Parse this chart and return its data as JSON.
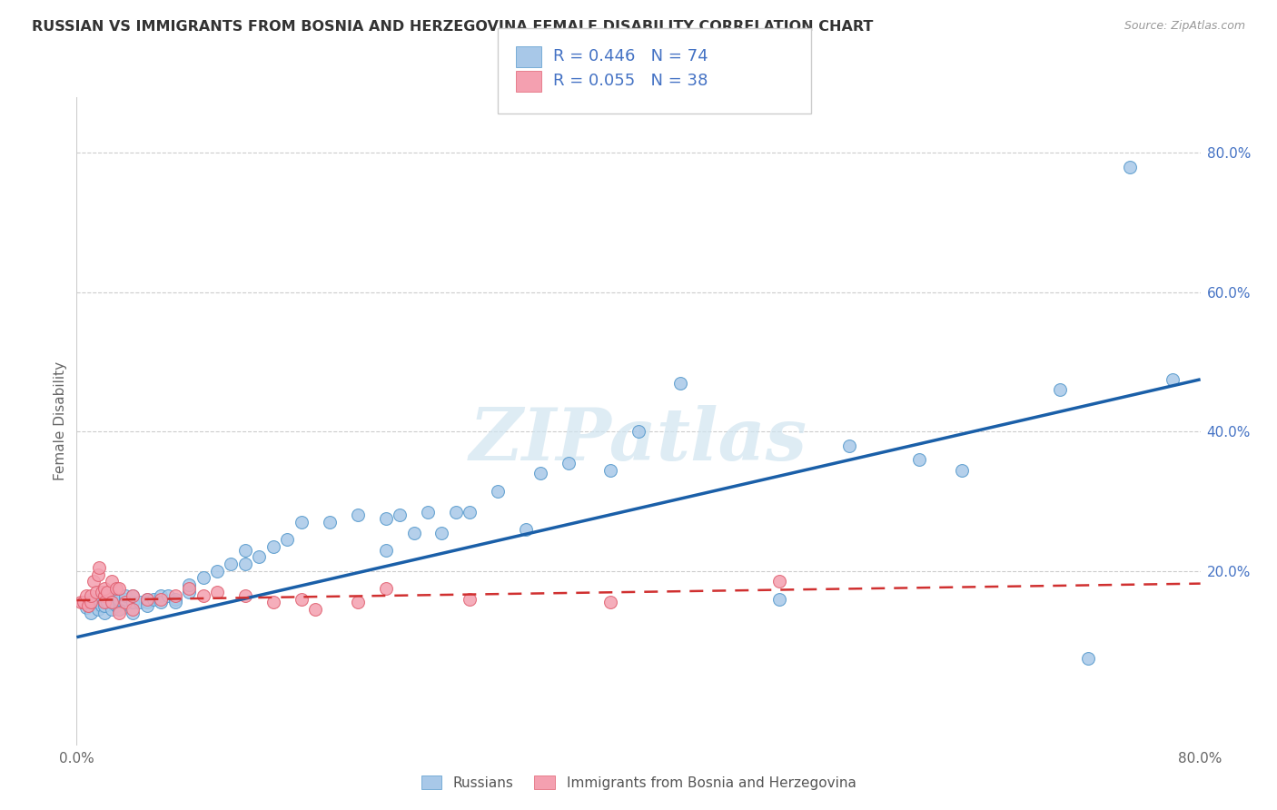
{
  "title": "RUSSIAN VS IMMIGRANTS FROM BOSNIA AND HERZEGOVINA FEMALE DISABILITY CORRELATION CHART",
  "source": "Source: ZipAtlas.com",
  "ylabel": "Female Disability",
  "watermark": "ZIPatlas",
  "xlim": [
    0.0,
    0.8
  ],
  "ylim": [
    -0.05,
    0.88
  ],
  "xticks": [
    0.0,
    0.1,
    0.2,
    0.3,
    0.4,
    0.5,
    0.6,
    0.7,
    0.8
  ],
  "xticklabels": [
    "0.0%",
    "",
    "",
    "",
    "",
    "",
    "",
    "",
    "80.0%"
  ],
  "ytick_positions": [
    0.0,
    0.2,
    0.4,
    0.6,
    0.8
  ],
  "yticklabels": [
    "",
    "20.0%",
    "40.0%",
    "60.0%",
    "80.0%"
  ],
  "russian_color": "#a8c8e8",
  "russian_edge_color": "#5599cc",
  "bosnia_color": "#f4a0b0",
  "bosnia_edge_color": "#e06070",
  "russian_line_color": "#1a5fa8",
  "bosnia_line_color": "#d03030",
  "grid_color": "#cccccc",
  "russian_scatter_x": [
    0.005,
    0.007,
    0.008,
    0.01,
    0.01,
    0.012,
    0.015,
    0.015,
    0.015,
    0.018,
    0.02,
    0.02,
    0.02,
    0.022,
    0.025,
    0.025,
    0.025,
    0.025,
    0.028,
    0.03,
    0.03,
    0.03,
    0.035,
    0.035,
    0.04,
    0.04,
    0.04,
    0.04,
    0.045,
    0.05,
    0.05,
    0.05,
    0.055,
    0.06,
    0.06,
    0.065,
    0.07,
    0.07,
    0.08,
    0.08,
    0.09,
    0.1,
    0.11,
    0.12,
    0.12,
    0.13,
    0.14,
    0.15,
    0.16,
    0.18,
    0.2,
    0.22,
    0.22,
    0.23,
    0.24,
    0.25,
    0.26,
    0.27,
    0.28,
    0.3,
    0.32,
    0.33,
    0.35,
    0.38,
    0.4,
    0.43,
    0.5,
    0.55,
    0.6,
    0.63,
    0.7,
    0.72,
    0.75,
    0.78
  ],
  "russian_scatter_y": [
    0.155,
    0.148,
    0.15,
    0.14,
    0.16,
    0.155,
    0.145,
    0.155,
    0.16,
    0.15,
    0.155,
    0.14,
    0.15,
    0.155,
    0.145,
    0.155,
    0.16,
    0.165,
    0.15,
    0.155,
    0.145,
    0.16,
    0.16,
    0.165,
    0.155,
    0.14,
    0.155,
    0.165,
    0.155,
    0.16,
    0.155,
    0.15,
    0.16,
    0.165,
    0.155,
    0.165,
    0.16,
    0.155,
    0.17,
    0.18,
    0.19,
    0.2,
    0.21,
    0.21,
    0.23,
    0.22,
    0.235,
    0.245,
    0.27,
    0.27,
    0.28,
    0.275,
    0.23,
    0.28,
    0.255,
    0.285,
    0.255,
    0.285,
    0.285,
    0.315,
    0.26,
    0.34,
    0.355,
    0.345,
    0.4,
    0.47,
    0.16,
    0.38,
    0.36,
    0.345,
    0.46,
    0.075,
    0.78,
    0.475
  ],
  "bosnia_scatter_x": [
    0.003,
    0.005,
    0.007,
    0.008,
    0.01,
    0.01,
    0.012,
    0.014,
    0.015,
    0.016,
    0.018,
    0.02,
    0.02,
    0.02,
    0.022,
    0.025,
    0.025,
    0.028,
    0.03,
    0.03,
    0.035,
    0.04,
    0.04,
    0.05,
    0.06,
    0.07,
    0.08,
    0.09,
    0.1,
    0.12,
    0.14,
    0.16,
    0.17,
    0.2,
    0.22,
    0.28,
    0.38,
    0.5
  ],
  "bosnia_scatter_y": [
    0.155,
    0.155,
    0.165,
    0.15,
    0.155,
    0.165,
    0.185,
    0.17,
    0.195,
    0.205,
    0.17,
    0.165,
    0.175,
    0.155,
    0.17,
    0.185,
    0.155,
    0.175,
    0.175,
    0.14,
    0.155,
    0.165,
    0.145,
    0.16,
    0.16,
    0.165,
    0.175,
    0.165,
    0.17,
    0.165,
    0.155,
    0.16,
    0.145,
    0.155,
    0.175,
    0.16,
    0.155,
    0.185
  ],
  "russian_line_x": [
    0.0,
    0.8
  ],
  "russian_line_y": [
    0.105,
    0.475
  ],
  "bosnia_line_x": [
    0.0,
    0.8
  ],
  "bosnia_line_y": [
    0.158,
    0.182
  ]
}
